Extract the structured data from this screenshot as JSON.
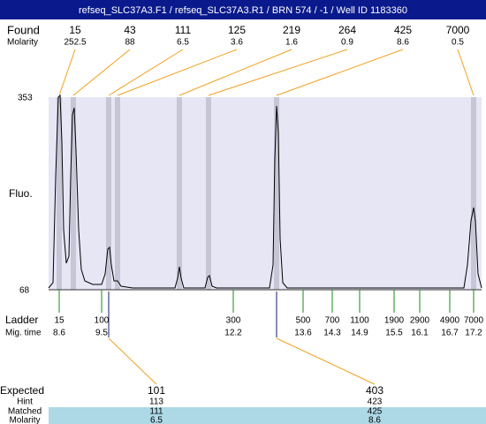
{
  "header": {
    "title": "refseq_SLC37A3.F1 / refseq_SLC37A3.R1 / BRN 574 / -1 / Well ID 1183360"
  },
  "found": {
    "label": "Found",
    "molarity_label": "Molarity",
    "peaks": [
      {
        "size": 15,
        "molarity": 252.5
      },
      {
        "size": 43,
        "molarity": 88
      },
      {
        "size": 111,
        "molarity": 6.5
      },
      {
        "size": 125,
        "molarity": 3.6
      },
      {
        "size": 219,
        "molarity": 1.6
      },
      {
        "size": 264,
        "molarity": 0.9
      },
      {
        "size": 425,
        "molarity": 8.6
      },
      {
        "size": 7000,
        "molarity": 0.5
      }
    ]
  },
  "axis": {
    "label": "Fluo.",
    "max": 353,
    "min": 68
  },
  "ladder": {
    "label": "Ladder",
    "time_label": "Mig. time",
    "peaks": [
      {
        "size": 15,
        "time": 8.6
      },
      {
        "size": 100,
        "time": 9.5
      },
      {
        "size": 300,
        "time": 12.2
      },
      {
        "size": 500,
        "time": 13.6
      },
      {
        "size": 700,
        "time": 14.3
      },
      {
        "size": 1100,
        "time": 14.9
      },
      {
        "size": 1900,
        "time": 15.5
      },
      {
        "size": 2900,
        "time": 16.1
      },
      {
        "size": 4900,
        "time": 16.7
      },
      {
        "size": 7000,
        "time": 17.2
      }
    ]
  },
  "expected": {
    "labels": [
      "Expected",
      "Hint",
      "Matched",
      "Molarity"
    ],
    "columns": [
      {
        "expected": 101,
        "hint": 113,
        "matched": 111,
        "molarity": 6.5
      },
      {
        "expected": 403,
        "hint": 423,
        "matched": 425,
        "molarity": 8.6
      }
    ]
  }
}
